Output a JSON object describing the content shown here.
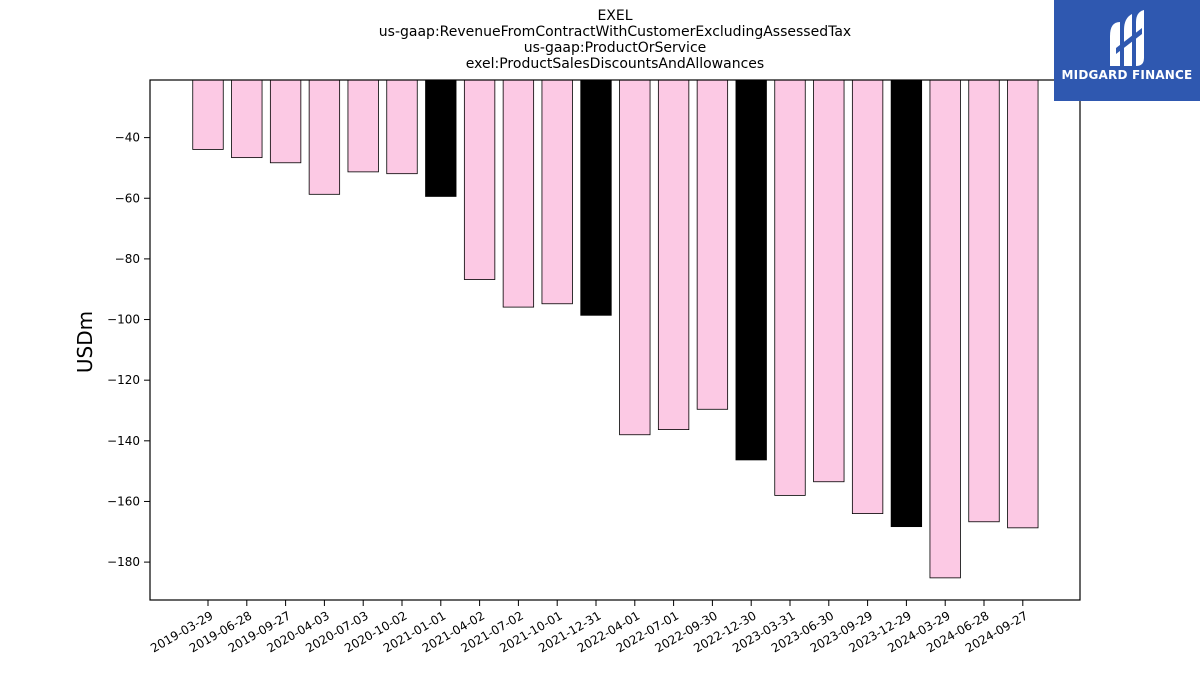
{
  "chart_data": {
    "type": "bar",
    "title_lines": [
      "EXEL",
      "us-gaap:RevenueFromContractWithCustomerExcludingAssessedTax",
      "us-gaap:ProductOrService",
      "exel:ProductSalesDiscountsAndAllowances"
    ],
    "xlabel": "",
    "ylabel": "USDm",
    "ylim": [
      -192.5,
      -21.0
    ],
    "yticks": [
      -40,
      -60,
      -80,
      -100,
      -120,
      -140,
      -160,
      -180
    ],
    "grid": false,
    "legend": "none",
    "categories": [
      "2019-03-29",
      "2019-06-28",
      "2019-09-27",
      "2020-04-03",
      "2020-07-03",
      "2020-10-02",
      "2021-01-01",
      "2021-04-02",
      "2021-07-02",
      "2021-10-01",
      "2021-12-31",
      "2022-04-01",
      "2022-07-01",
      "2022-09-30",
      "2022-12-30",
      "2023-03-31",
      "2023-06-30",
      "2023-09-29",
      "2023-12-29",
      "2024-03-29",
      "2024-06-28",
      "2024-09-27"
    ],
    "values": [
      -43.9,
      -46.6,
      -48.3,
      -58.7,
      -51.3,
      -51.9,
      -59.4,
      -86.8,
      -95.9,
      -94.8,
      -98.6,
      -138.0,
      -136.3,
      -129.6,
      -146.3,
      -158.0,
      -153.5,
      -164.0,
      -168.3,
      -185.2,
      -166.7,
      -168.7
    ],
    "highlight": [
      false,
      false,
      false,
      false,
      false,
      false,
      true,
      false,
      false,
      false,
      true,
      false,
      false,
      false,
      true,
      false,
      false,
      false,
      true,
      false,
      false,
      false
    ],
    "colors": {
      "bar": "#fcc9e4",
      "highlight": "#000000",
      "edge": "#000000"
    }
  },
  "logo": {
    "text": "MIDGARD FINANCE",
    "background": "#2f58b0"
  }
}
